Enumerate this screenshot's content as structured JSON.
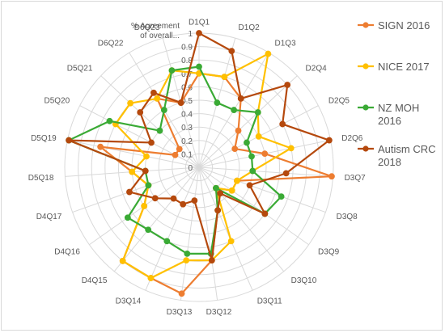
{
  "chart_data": {
    "type": "radar",
    "title": "",
    "axis_title": "% Agreement of overall...",
    "scale": {
      "min": 0,
      "max": 1,
      "step": 0.1
    },
    "tick_labels": [
      "0",
      "0.1",
      "0.2",
      "0.3",
      "0.4",
      "0.5",
      "0.6",
      "0.7",
      "0.8",
      "0.9",
      "1"
    ],
    "categories": [
      "D1Q1",
      "D1Q2",
      "D1Q3",
      "D2Q4",
      "D2Q5",
      "D2Q6",
      "D3Q7",
      "D3Q8",
      "D3Q9",
      "D3Q10",
      "D3Q11",
      "D3Q12",
      "D3Q13",
      "D3Q14",
      "D4Q15",
      "D4Q16",
      "D4Q17",
      "D5Q18",
      "D5Q19",
      "D5Q20",
      "D5Q21",
      "D6Q22",
      "D6Q23"
    ],
    "legend_position": "right",
    "series": [
      {
        "name": "SIGN 2016",
        "color": "#ED7D31",
        "values": [
          0.7,
          0.7,
          0.6,
          0.4,
          0.3,
          0.5,
          0.99,
          0.3,
          0.3,
          0.2,
          0.35,
          0.7,
          0.95,
          0.9,
          0.9,
          0.5,
          0.4,
          0.5,
          0.75,
          0.2,
          0.2,
          0.6,
          0.5
        ]
      },
      {
        "name": "NICE 2017",
        "color": "#FFC000",
        "values": [
          0.7,
          0.7,
          0.99,
          0.6,
          0.5,
          0.7,
          0.4,
          0.3,
          0.3,
          0.2,
          0.6,
          0.7,
          0.7,
          0.9,
          0.9,
          0.5,
          0.4,
          0.5,
          0.4,
          0.7,
          0.7,
          0.6,
          0.75
        ]
      },
      {
        "name": "NZ MOH 2016",
        "color": "#3AAA35",
        "values": [
          0.75,
          0.5,
          0.5,
          0.6,
          0.4,
          0.4,
          0.4,
          0.65,
          0.6,
          0.2,
          0.35,
          0.65,
          0.65,
          0.6,
          0.6,
          0.65,
          0.4,
          0.4,
          0.99,
          0.75,
          0.4,
          0.5,
          0.75
        ]
      },
      {
        "name": "Autism CRC 2018",
        "color": "#B5490D",
        "values": [
          1.0,
          0.9,
          0.6,
          0.9,
          0.7,
          0.99,
          0.65,
          0.4,
          0.6,
          0.25,
          0.35,
          0.7,
          0.25,
          0.3,
          0.3,
          0.4,
          0.55,
          0.4,
          0.99,
          0.4,
          0.6,
          0.65,
          0.5
        ]
      }
    ]
  }
}
